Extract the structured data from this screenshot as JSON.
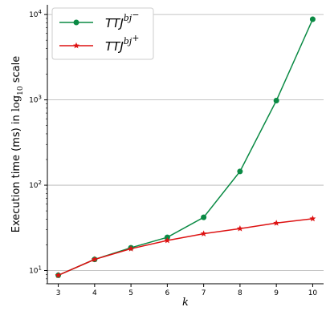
{
  "chart_data": {
    "type": "line",
    "xlabel": "k",
    "ylabel": "Execution time (ms) in log10 scale",
    "yscale": "log",
    "ylim": [
      7,
      13000
    ],
    "xlim": [
      2.7,
      10.3
    ],
    "x": [
      3,
      4,
      5,
      6,
      7,
      8,
      9,
      10
    ],
    "x_tick_labels": [
      "3",
      "4",
      "5",
      "6",
      "7",
      "8",
      "9",
      "10"
    ],
    "y_ticks": [
      10,
      100,
      1000,
      10000
    ],
    "grid": "horizontal",
    "legend": "top-left",
    "series": [
      {
        "name": "TTJbj−",
        "values": [
          8.8,
          13.5,
          18.5,
          24.5,
          42,
          145,
          980,
          8800
        ],
        "color": "#0a8a44",
        "marker": "circle"
      },
      {
        "name": "TTJbj+",
        "values": [
          8.8,
          13.5,
          18.0,
          22.5,
          27,
          31,
          36,
          40.5
        ],
        "color": "#dd1111",
        "marker": "star"
      }
    ]
  },
  "legend": {
    "minus": {
      "base": "TTJ",
      "sup": "bj",
      "sign": "−"
    },
    "plus": {
      "base": "TTJ",
      "sup": "bj",
      "sign": "+"
    }
  },
  "axis_text": {
    "ylabel_part1": "Execution time (ms) in ",
    "ylabel_log": "log",
    "ylabel_sub": "10",
    "ylabel_part2": " scale",
    "xlabel": "k"
  },
  "y_tick_text": [
    {
      "base": "10",
      "exp": "1"
    },
    {
      "base": "10",
      "exp": "2"
    },
    {
      "base": "10",
      "exp": "3"
    },
    {
      "base": "10",
      "exp": "4"
    }
  ]
}
